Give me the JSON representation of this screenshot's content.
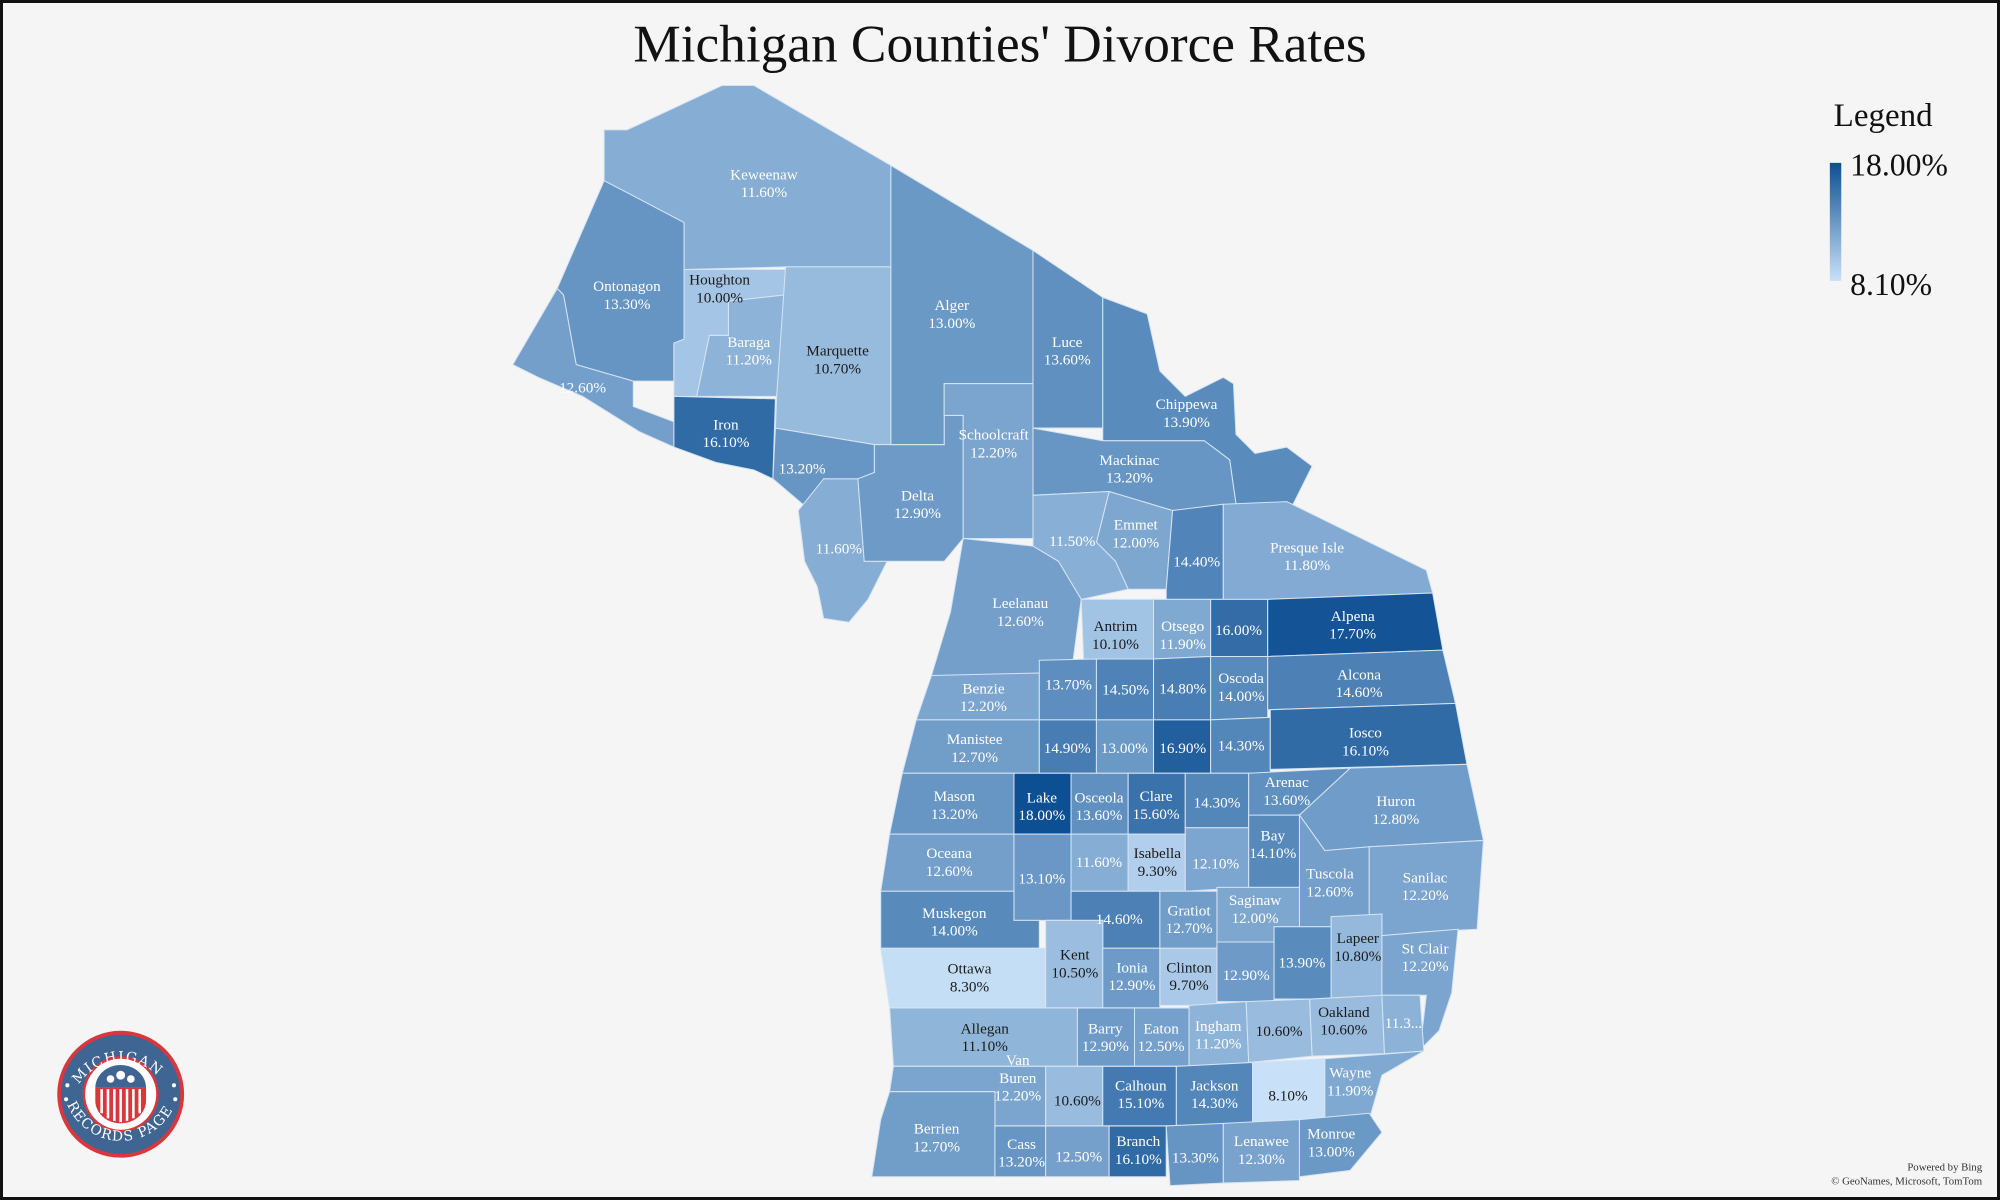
{
  "title": "Michigan Counties' Divorce Rates",
  "legend": {
    "title": "Legend",
    "max_label": "18.00%",
    "min_label": "8.10%",
    "max": 18.0,
    "min": 8.1,
    "color_low": "#c8e1f8",
    "color_high": "#0d4f93"
  },
  "attribution": {
    "line1": "Powered by Bing",
    "line2": "© GeoNames, Microsoft, TomTom"
  },
  "logo": {
    "top_text": "MICHIGAN",
    "bottom_text": "RECORDS PAGE",
    "ring_color": "#3f6592",
    "accent_color": "#d9363e"
  },
  "counties": [
    {
      "label": "Keweenaw",
      "text": "11.60%",
      "rate": 11.6
    },
    {
      "label": "Ontonagon",
      "text": "13.30%",
      "rate": 13.3
    },
    {
      "label": "",
      "text": "12.60%",
      "rate": 12.6
    },
    {
      "label": "Houghton",
      "text": "10.00%",
      "rate": 10.0
    },
    {
      "label": "Baraga",
      "text": "11.20%",
      "rate": 11.2
    },
    {
      "label": "Marquette",
      "text": "10.70%",
      "rate": 10.7
    },
    {
      "label": "Iron",
      "text": "16.10%",
      "rate": 16.1
    },
    {
      "label": "",
      "text": "13.20%",
      "rate": 13.2
    },
    {
      "label": "",
      "text": "11.60%",
      "rate": 11.6
    },
    {
      "label": "Delta",
      "text": "12.90%",
      "rate": 12.9
    },
    {
      "label": "Alger",
      "text": "13.00%",
      "rate": 13.0
    },
    {
      "label": "Schoolcraft",
      "text": "12.20%",
      "rate": 12.2
    },
    {
      "label": "Luce",
      "text": "13.60%",
      "rate": 13.6
    },
    {
      "label": "Chippewa",
      "text": "13.90%",
      "rate": 13.9
    },
    {
      "label": "Mackinac",
      "text": "13.20%",
      "rate": 13.2
    },
    {
      "label": "Emmet",
      "text": "12.00%",
      "rate": 12.0
    },
    {
      "label": "",
      "text": "11.50%",
      "rate": 11.5
    },
    {
      "label": "",
      "text": "14.40%",
      "rate": 14.4
    },
    {
      "label": "Presque Isle",
      "text": "11.80%",
      "rate": 11.8
    },
    {
      "label": "Leelanau",
      "text": "12.60%",
      "rate": 12.6
    },
    {
      "label": "Antrim",
      "text": "10.10%",
      "rate": 10.1
    },
    {
      "label": "Otsego",
      "text": "11.90%",
      "rate": 11.9
    },
    {
      "label": "",
      "text": "16.00%",
      "rate": 16.0
    },
    {
      "label": "Alpena",
      "text": "17.70%",
      "rate": 17.7
    },
    {
      "label": "Benzie",
      "text": "12.20%",
      "rate": 12.2
    },
    {
      "label": "",
      "text": "13.70%",
      "rate": 13.7
    },
    {
      "label": "",
      "text": "14.50%",
      "rate": 14.5
    },
    {
      "label": "",
      "text": "14.80%",
      "rate": 14.8
    },
    {
      "label": "Oscoda",
      "text": "14.00%",
      "rate": 14.0
    },
    {
      "label": "Alcona",
      "text": "14.60%",
      "rate": 14.6
    },
    {
      "label": "Manistee",
      "text": "12.70%",
      "rate": 12.7
    },
    {
      "label": "",
      "text": "14.90%",
      "rate": 14.9
    },
    {
      "label": "",
      "text": "13.00%",
      "rate": 13.0
    },
    {
      "label": "",
      "text": "16.90%",
      "rate": 16.9
    },
    {
      "label": "",
      "text": "14.30%",
      "rate": 14.3
    },
    {
      "label": "Iosco",
      "text": "16.10%",
      "rate": 16.1
    },
    {
      "label": "Mason",
      "text": "13.20%",
      "rate": 13.2
    },
    {
      "label": "Lake",
      "text": "18.00%",
      "rate": 18.0
    },
    {
      "label": "Osceola",
      "text": "13.60%",
      "rate": 13.6
    },
    {
      "label": "Clare",
      "text": "15.60%",
      "rate": 15.6
    },
    {
      "label": "",
      "text": "14.30%",
      "rate": 14.3
    },
    {
      "label": "Arenac",
      "text": "13.60%",
      "rate": 13.6
    },
    {
      "label": "Huron",
      "text": "12.80%",
      "rate": 12.8
    },
    {
      "label": "Oceana",
      "text": "12.60%",
      "rate": 12.6
    },
    {
      "label": "",
      "text": "13.10%",
      "rate": 13.1
    },
    {
      "label": "",
      "text": "11.60%",
      "rate": 11.6
    },
    {
      "label": "Isabella",
      "text": "9.30%",
      "rate": 9.3
    },
    {
      "label": "",
      "text": "12.10%",
      "rate": 12.1
    },
    {
      "label": "Bay",
      "text": "14.10%",
      "rate": 14.1
    },
    {
      "label": "Tuscola",
      "text": "12.60%",
      "rate": 12.6
    },
    {
      "label": "Sanilac",
      "text": "12.20%",
      "rate": 12.2
    },
    {
      "label": "Muskegon",
      "text": "14.00%",
      "rate": 14.0
    },
    {
      "label": "",
      "text": "14.60%",
      "rate": 14.6
    },
    {
      "label": "Gratiot",
      "text": "12.70%",
      "rate": 12.7
    },
    {
      "label": "Saginaw",
      "text": "12.00%",
      "rate": 12.0
    },
    {
      "label": "Ottawa",
      "text": "8.30%",
      "rate": 8.3
    },
    {
      "label": "Kent",
      "text": "10.50%",
      "rate": 10.5
    },
    {
      "label": "Ionia",
      "text": "12.90%",
      "rate": 12.9
    },
    {
      "label": "Clinton",
      "text": "9.70%",
      "rate": 9.7
    },
    {
      "label": "",
      "text": "12.90%",
      "rate": 12.9
    },
    {
      "label": "",
      "text": "13.90%",
      "rate": 13.9
    },
    {
      "label": "Lapeer",
      "text": "10.80%",
      "rate": 10.8
    },
    {
      "label": "St Clair",
      "text": "12.20%",
      "rate": 12.2
    },
    {
      "label": "Allegan",
      "text": "11.10%",
      "rate": 11.1
    },
    {
      "label": "Barry",
      "text": "12.90%",
      "rate": 12.9
    },
    {
      "label": "Eaton",
      "text": "12.50%",
      "rate": 12.5
    },
    {
      "label": "Ingham",
      "text": "11.20%",
      "rate": 11.2
    },
    {
      "label": "",
      "text": "10.60%",
      "rate": 10.6
    },
    {
      "label": "Oakland",
      "text": "10.60%",
      "rate": 10.6
    },
    {
      "label": "",
      "text": "11.3...",
      "rate": 11.3
    },
    {
      "label": "Van Buren",
      "text": "12.20%",
      "rate": 12.2
    },
    {
      "label": "Berrien",
      "text": "12.70%",
      "rate": 12.7
    },
    {
      "label": "",
      "text": "10.60%",
      "rate": 10.6
    },
    {
      "label": "Calhoun",
      "text": "15.10%",
      "rate": 15.1
    },
    {
      "label": "Jackson",
      "text": "14.30%",
      "rate": 14.3
    },
    {
      "label": "",
      "text": "8.10%",
      "rate": 8.1
    },
    {
      "label": "Wayne",
      "text": "11.90%",
      "rate": 11.9
    },
    {
      "label": "Cass",
      "text": "13.20%",
      "rate": 13.2
    },
    {
      "label": "",
      "text": "12.50%",
      "rate": 12.5
    },
    {
      "label": "Branch",
      "text": "16.10%",
      "rate": 16.1
    },
    {
      "label": "",
      "text": "13.30%",
      "rate": 13.3
    },
    {
      "label": "Lenawee",
      "text": "12.30%",
      "rate": 12.3
    },
    {
      "label": "Monroe",
      "text": "13.00%",
      "rate": 13.0
    }
  ]
}
